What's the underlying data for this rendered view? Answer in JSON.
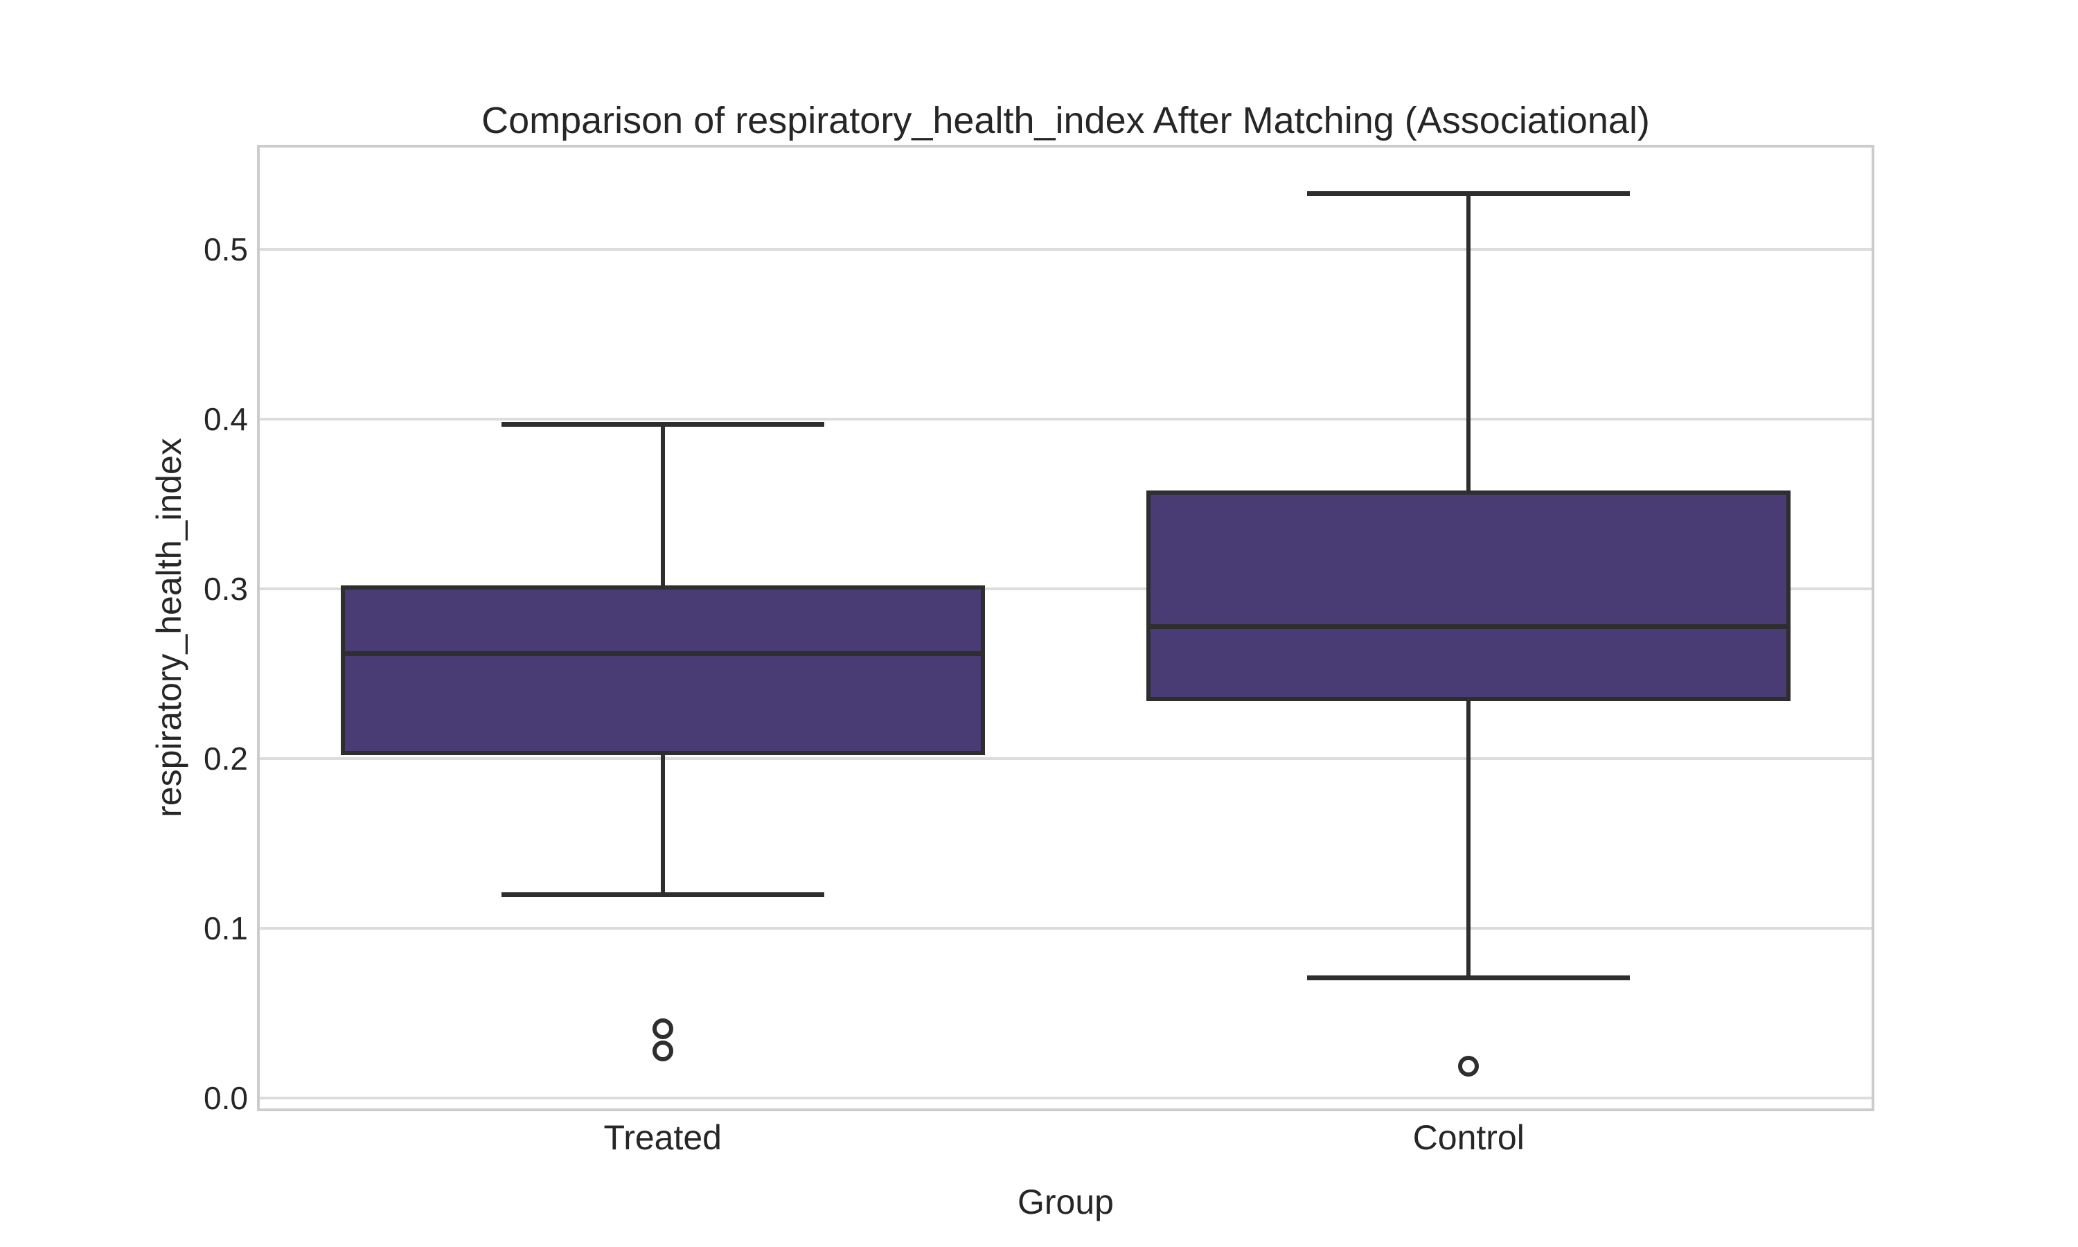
{
  "chart_data": {
    "type": "boxplot",
    "title": "Comparison of respiratory_health_index After Matching (Associational)",
    "xlabel": "Group",
    "ylabel": "respiratory_health_index",
    "categories": [
      "Treated",
      "Control"
    ],
    "y_ticks": [
      0.0,
      0.1,
      0.2,
      0.3,
      0.4,
      0.5
    ],
    "ylim": [
      -0.006,
      0.56
    ],
    "grid": "horizontal-only",
    "legend": "none",
    "colors": {
      "box_fill": "#493b73",
      "box_edge": "#2e2e2e",
      "median_line": "#2e2e2e",
      "whisker": "#2e2e2e",
      "outlier_edge": "#2e2e2e",
      "gridline": "#dcdcdc",
      "spine": "#cccccc",
      "text": "#262626",
      "background": "#ffffff"
    },
    "series": [
      {
        "name": "Treated",
        "whisker_low": 0.12,
        "q1": 0.202,
        "median": 0.262,
        "q3": 0.302,
        "whisker_high": 0.397,
        "outliers": [
          0.041,
          0.028
        ]
      },
      {
        "name": "Control",
        "whisker_low": 0.071,
        "q1": 0.234,
        "median": 0.278,
        "q3": 0.358,
        "whisker_high": 0.533,
        "outliers": [
          0.019
        ]
      }
    ]
  }
}
